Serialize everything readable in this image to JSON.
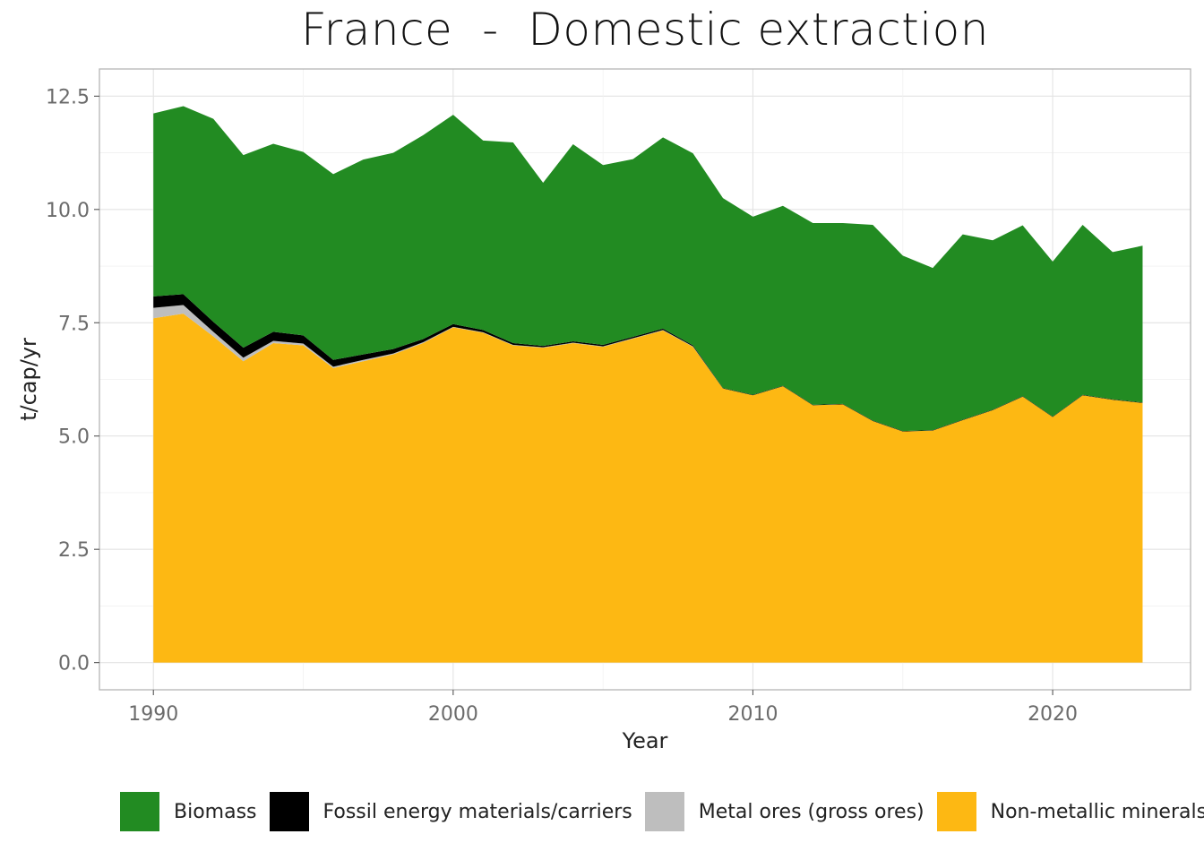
{
  "chart_data": {
    "type": "area",
    "stacked": true,
    "title": "France  -  Domestic extraction",
    "xlabel": "Year",
    "ylabel": "t/cap/yr",
    "xlim": [
      1988.2,
      2024.6
    ],
    "ylim": [
      -0.6,
      13.1
    ],
    "xticks": [
      1990,
      2000,
      2010,
      2020
    ],
    "yticks": [
      0.0,
      2.5,
      5.0,
      7.5,
      10.0,
      12.5
    ],
    "ytick_labels": [
      "0.0",
      "2.5",
      "5.0",
      "7.5",
      "10.0",
      "12.5"
    ],
    "grid": true,
    "legend_position": "bottom",
    "x": [
      1990,
      1991,
      1992,
      1993,
      1994,
      1995,
      1996,
      1997,
      1998,
      1999,
      2000,
      2001,
      2002,
      2003,
      2004,
      2005,
      2006,
      2007,
      2008,
      2009,
      2010,
      2011,
      2012,
      2013,
      2014,
      2015,
      2016,
      2017,
      2018,
      2019,
      2020,
      2021,
      2022,
      2023
    ],
    "series": [
      {
        "name": "Non-metallic minerals",
        "color": "#FDB813",
        "values": [
          7.6,
          7.7,
          7.2,
          6.65,
          7.05,
          7.0,
          6.5,
          6.65,
          6.8,
          7.05,
          7.4,
          7.28,
          7.0,
          6.95,
          7.05,
          6.97,
          7.15,
          7.33,
          6.97,
          6.05,
          5.9,
          6.1,
          5.68,
          5.7,
          5.33,
          5.1,
          5.12,
          5.35,
          5.57,
          5.87,
          5.42,
          5.9,
          5.8,
          5.73
        ]
      },
      {
        "name": "Metal ores (gross ores)",
        "color": "#BEBEBE",
        "values": [
          0.23,
          0.19,
          0.1,
          0.08,
          0.05,
          0.04,
          0.03,
          0.03,
          0.02,
          0.02,
          0.01,
          0.01,
          0.01,
          0.01,
          0.01,
          0.01,
          0.01,
          0.01,
          0.01,
          0.0,
          0.0,
          0.0,
          0.0,
          0.0,
          0.0,
          0.0,
          0.0,
          0.0,
          0.0,
          0.0,
          0.0,
          0.0,
          0.0,
          0.0
        ]
      },
      {
        "name": "Fossil energy materials/carriers",
        "color": "#000000",
        "values": [
          0.25,
          0.24,
          0.22,
          0.22,
          0.2,
          0.18,
          0.15,
          0.12,
          0.1,
          0.07,
          0.06,
          0.05,
          0.04,
          0.03,
          0.03,
          0.03,
          0.03,
          0.03,
          0.02,
          0.01,
          0.01,
          0.01,
          0.01,
          0.01,
          0.01,
          0.01,
          0.01,
          0.01,
          0.01,
          0.01,
          0.01,
          0.01,
          0.01,
          0.01
        ]
      },
      {
        "name": "Biomass",
        "color": "#228B22",
        "values": [
          4.04,
          4.15,
          4.48,
          4.25,
          4.15,
          4.05,
          4.1,
          4.3,
          4.33,
          4.5,
          4.62,
          4.18,
          4.43,
          3.6,
          4.35,
          3.97,
          3.92,
          4.22,
          4.24,
          4.19,
          3.93,
          3.97,
          4.01,
          3.99,
          4.32,
          3.87,
          3.58,
          4.09,
          3.74,
          3.77,
          3.42,
          3.75,
          3.25,
          3.46
        ]
      }
    ]
  }
}
